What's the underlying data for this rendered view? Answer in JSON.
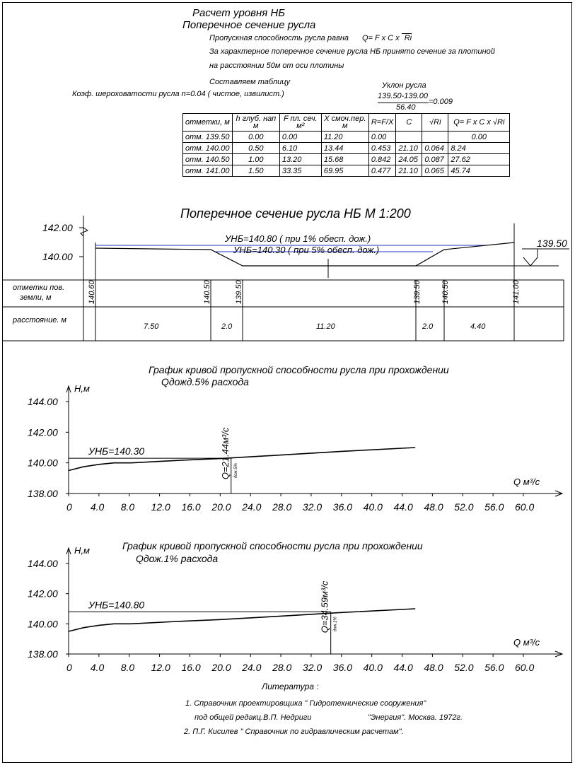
{
  "header": {
    "title1": "Расчет уровня НБ",
    "title2": "Поперечное сечение  русла",
    "line1": "Пропускная способность русла  равна",
    "formula": "Q=  F x C x",
    "formula_root": "Ri",
    "line2": "За характерное поперечное сечение русла НБ  принято сечение за плотиной",
    "line3": "на расстоянии  50м от оси плотины",
    "line4": "Составляем таблицу",
    "roughness": "Коэф. шероховатости  русла   n=0.04 ( чистое, извилист.)",
    "slope_label": "Уклон русла",
    "slope_num": "139.50-139.00",
    "slope_den": "56.40",
    "slope_val": "=0.009"
  },
  "table": {
    "headers": [
      "отметки, м",
      "h глуб. нап м",
      "F пл. сеч. м²",
      "X смоч.пер. м",
      "R=F/X",
      "C",
      "√Ri",
      "Q=  F x C x √Ri"
    ],
    "rows": [
      [
        "отм. 139.50",
        "0.00",
        "0.00",
        "11.20",
        "0.00",
        "",
        "",
        "0.00"
      ],
      [
        "отм. 140.00",
        "0.50",
        "6.10",
        "13.44",
        "0.453",
        "21.10",
        "0.064",
        "8.24"
      ],
      [
        "отм. 140.50",
        "1.00",
        "13.20",
        "15.68",
        "0.842",
        "24.05",
        "0.087",
        "27.62"
      ],
      [
        "отм. 141.00",
        "1.50",
        "33.35",
        "69.95",
        "0.477",
        "21.10",
        "0.065",
        "45.74"
      ]
    ]
  },
  "section": {
    "title": "Поперечное сечение русла НБ М 1:200",
    "level1": "УНБ=140.80 ( при 1% обесп. дож.)",
    "level2": "УНБ=140.30 ( при 5% обесп. дож.)",
    "y_ticks": [
      "142.00",
      "140.00"
    ],
    "mark": "139.50",
    "row1_label": "отметки пов. земли,  м",
    "row2_label": "расстояние. м",
    "elevations": [
      "140.60",
      "140.50",
      "139.50",
      "139.50",
      "140.50",
      "141.00"
    ],
    "distances": [
      "7.50",
      "2.0",
      "11.20",
      "2.0",
      "4.40"
    ]
  },
  "graph1": {
    "title1": "График кривой пропускной способности русла при прохождении",
    "title2": "Qдожд.5% расхода",
    "ylabel": "Н,м",
    "xlabel": "Q  м³/с",
    "level": "УНБ=140.30",
    "qlabel": "Q=21.44м³/с",
    "qsub": "дож.5%"
  },
  "graph2": {
    "title1": "График кривой пропускной способности русла при прохождении",
    "title2": "Qдож.1% расхода",
    "ylabel": "Н,м",
    "xlabel": "Q  м³/с",
    "level": "УНБ=140.80",
    "qlabel": "Q=34.59м³/с",
    "qsub": "дож.1%"
  },
  "chart_data": [
    {
      "type": "line",
      "title": "График кривой пропускной способности русла при прохождении Qдожд.5% расхода",
      "xlabel": "Q м³/с",
      "ylabel": "Н,м",
      "xlim": [
        0,
        60
      ],
      "ylim": [
        138,
        144
      ],
      "x_ticks": [
        "0",
        "4.0",
        "8.0",
        "12.0",
        "16.0",
        "20.0",
        "24.0",
        "28.0",
        "32.0",
        "36.0",
        "40.0",
        "44.0",
        "48.0",
        "52.0",
        "56.0",
        "60.0"
      ],
      "y_ticks": [
        "144.00",
        "142.00",
        "140.00",
        "138.00"
      ],
      "series": [
        {
          "x": [
            0,
            2,
            4,
            6,
            8.24,
            14,
            20,
            27.62,
            36,
            45.74
          ],
          "y": [
            139.5,
            139.75,
            139.9,
            140.0,
            140.0,
            140.15,
            140.28,
            140.5,
            140.75,
            141.0
          ]
        }
      ],
      "level_y": 140.3,
      "q_x": 21.44
    },
    {
      "type": "line",
      "title": "График кривой пропускной способности русла при прохождении Qдож.1% расхода",
      "xlabel": "Q м³/с",
      "ylabel": "Н,м",
      "xlim": [
        0,
        60
      ],
      "ylim": [
        138,
        144
      ],
      "x_ticks": [
        "0",
        "4.0",
        "8.0",
        "12.0",
        "16.0",
        "20.0",
        "24.0",
        "28.0",
        "32.0",
        "36.0",
        "40.0",
        "44.0",
        "48.0",
        "52.0",
        "56.0",
        "60.0"
      ],
      "y_ticks": [
        "144.00",
        "142.00",
        "140.00",
        "138.00"
      ],
      "series": [
        {
          "x": [
            0,
            2,
            4,
            6,
            8.24,
            14,
            20,
            27.62,
            36,
            45.74
          ],
          "y": [
            139.5,
            139.75,
            139.9,
            140.0,
            140.0,
            140.15,
            140.28,
            140.5,
            140.75,
            141.0
          ]
        }
      ],
      "level_y": 140.8,
      "q_x": 34.59
    }
  ],
  "literature": {
    "title": "Литература :",
    "l1": "1. Справочник проектировщика \" Гидротехнические сооружения\"",
    "l2a": "под общей редакц.В.П. Недриги",
    "l2b": "\"Энергия\". Москва. 1972г.",
    "l3": "2. П.Г. Кисилев \" Справочник по гидравлическим расчетам\"."
  }
}
